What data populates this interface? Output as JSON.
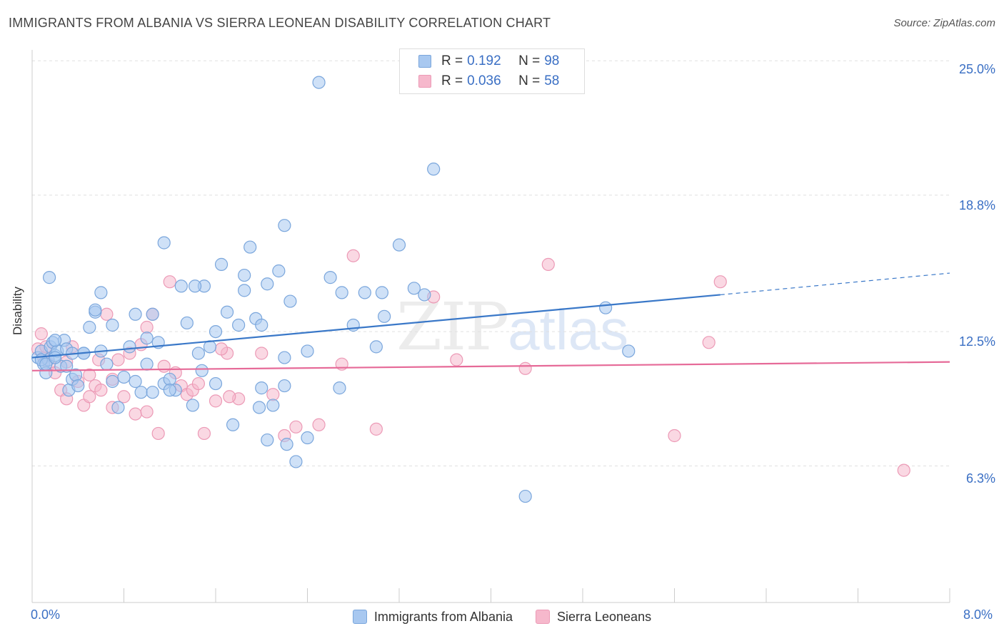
{
  "title": "IMMIGRANTS FROM ALBANIA VS SIERRA LEONEAN DISABILITY CORRELATION CHART",
  "source": "Source: ZipAtlas.com",
  "watermark": {
    "zip": "ZIP",
    "atlas": "atlas"
  },
  "legend_top": [
    {
      "r_label": "R =",
      "r_value": "0.192",
      "n_label": "N =",
      "n_value": "98"
    },
    {
      "r_label": "R =",
      "r_value": "0.036",
      "n_label": "N =",
      "n_value": "58"
    }
  ],
  "colors": {
    "blue_fill": "#a8c8f0",
    "blue_stroke": "#7aa6dc",
    "blue_line": "#3a78c8",
    "pink_fill": "#f6b8cc",
    "pink_stroke": "#ec9ab6",
    "pink_line": "#e66a98",
    "label_blue": "#3a6fc4"
  },
  "chart_data": {
    "type": "scatter",
    "title": "IMMIGRANTS FROM ALBANIA VS SIERRA LEONEAN DISABILITY CORRELATION CHART",
    "xlabel": "",
    "ylabel": "Disability",
    "xlim": [
      0,
      8
    ],
    "ylim": [
      0,
      25.5
    ],
    "x_tick_labels": [
      "0.0%",
      "8.0%"
    ],
    "y_ticks": [
      6.3,
      12.5,
      18.8,
      25.0
    ],
    "y_tick_labels": [
      "6.3%",
      "12.5%",
      "18.8%",
      "25.0%"
    ],
    "grid": "horizontal dashed",
    "legend_position": "bottom",
    "series": [
      {
        "name": "Immigrants from Albania",
        "color": "#a8c8f0",
        "points": [
          [
            0.05,
            11.3
          ],
          [
            0.08,
            11.6
          ],
          [
            0.1,
            11.0
          ],
          [
            0.12,
            10.6
          ],
          [
            0.14,
            11.2
          ],
          [
            0.16,
            11.8
          ],
          [
            0.18,
            12.0
          ],
          [
            0.2,
            11.4
          ],
          [
            0.22,
            11.6
          ],
          [
            0.25,
            10.9
          ],
          [
            0.28,
            12.1
          ],
          [
            0.3,
            11.7
          ],
          [
            0.32,
            9.8
          ],
          [
            0.35,
            10.3
          ],
          [
            0.38,
            10.5
          ],
          [
            0.4,
            10.0
          ],
          [
            0.45,
            11.5
          ],
          [
            0.5,
            12.7
          ],
          [
            0.55,
            13.4
          ],
          [
            0.6,
            11.6
          ],
          [
            0.65,
            11.0
          ],
          [
            0.7,
            10.2
          ],
          [
            0.75,
            9.0
          ],
          [
            0.8,
            10.4
          ],
          [
            0.85,
            11.8
          ],
          [
            0.9,
            10.2
          ],
          [
            0.95,
            9.7
          ],
          [
            1.0,
            11.0
          ],
          [
            1.05,
            13.3
          ],
          [
            1.1,
            12.0
          ],
          [
            1.15,
            10.1
          ],
          [
            1.2,
            10.3
          ],
          [
            1.25,
            9.8
          ],
          [
            1.3,
            14.6
          ],
          [
            1.35,
            12.9
          ],
          [
            1.4,
            9.1
          ],
          [
            1.45,
            11.5
          ],
          [
            1.5,
            14.6
          ],
          [
            1.55,
            11.8
          ],
          [
            1.6,
            12.5
          ],
          [
            1.65,
            15.6
          ],
          [
            1.7,
            13.4
          ],
          [
            1.75,
            8.2
          ],
          [
            1.8,
            12.8
          ],
          [
            1.85,
            14.4
          ],
          [
            1.9,
            16.4
          ],
          [
            1.95,
            13.1
          ],
          [
            2.0,
            9.9
          ],
          [
            2.05,
            14.7
          ],
          [
            2.1,
            9.1
          ],
          [
            2.15,
            15.3
          ],
          [
            2.2,
            11.3
          ],
          [
            2.3,
            6.5
          ],
          [
            2.4,
            11.6
          ],
          [
            2.5,
            24.0
          ],
          [
            2.6,
            15.0
          ],
          [
            2.7,
            14.3
          ],
          [
            2.8,
            12.8
          ],
          [
            2.9,
            14.3
          ],
          [
            3.0,
            11.8
          ],
          [
            3.2,
            16.5
          ],
          [
            3.5,
            20.0
          ],
          [
            4.3,
            4.9
          ],
          [
            5.0,
            13.6
          ],
          [
            5.2,
            11.6
          ],
          [
            0.6,
            14.3
          ],
          [
            0.7,
            12.8
          ],
          [
            0.15,
            15.0
          ],
          [
            0.9,
            13.3
          ],
          [
            1.15,
            16.6
          ],
          [
            2.2,
            17.4
          ],
          [
            1.2,
            9.8
          ],
          [
            0.45,
            11.5
          ],
          [
            0.35,
            11.5
          ],
          [
            0.3,
            10.9
          ],
          [
            1.0,
            12.2
          ],
          [
            1.05,
            9.7
          ],
          [
            1.48,
            10.7
          ],
          [
            1.6,
            10.1
          ],
          [
            1.85,
            15.1
          ],
          [
            2.25,
            13.9
          ],
          [
            2.2,
            10.0
          ],
          [
            2.4,
            7.6
          ],
          [
            2.68,
            9.9
          ],
          [
            3.07,
            13.2
          ],
          [
            3.05,
            14.3
          ],
          [
            3.33,
            14.5
          ],
          [
            3.42,
            14.2
          ],
          [
            1.98,
            9.0
          ],
          [
            2.05,
            7.5
          ],
          [
            2.22,
            7.3
          ],
          [
            0.08,
            11.2
          ],
          [
            0.12,
            11.0
          ],
          [
            0.2,
            11.3
          ],
          [
            1.42,
            14.6
          ],
          [
            2.0,
            12.8
          ],
          [
            0.2,
            12.1
          ],
          [
            0.55,
            13.5
          ]
        ]
      },
      {
        "name": "Sierra Leoneans",
        "color": "#f6b8cc",
        "points": [
          [
            0.05,
            11.7
          ],
          [
            0.08,
            12.4
          ],
          [
            0.1,
            11.3
          ],
          [
            0.15,
            11.0
          ],
          [
            0.2,
            10.6
          ],
          [
            0.25,
            9.8
          ],
          [
            0.3,
            9.4
          ],
          [
            0.35,
            11.8
          ],
          [
            0.4,
            10.2
          ],
          [
            0.45,
            9.1
          ],
          [
            0.5,
            9.5
          ],
          [
            0.55,
            10.0
          ],
          [
            0.6,
            9.8
          ],
          [
            0.65,
            13.3
          ],
          [
            0.7,
            10.3
          ],
          [
            0.75,
            11.2
          ],
          [
            0.8,
            9.5
          ],
          [
            0.85,
            11.5
          ],
          [
            0.9,
            8.7
          ],
          [
            0.95,
            11.9
          ],
          [
            1.0,
            12.7
          ],
          [
            1.05,
            13.3
          ],
          [
            1.1,
            7.8
          ],
          [
            1.15,
            10.9
          ],
          [
            1.2,
            14.8
          ],
          [
            1.25,
            10.6
          ],
          [
            1.3,
            10.0
          ],
          [
            1.35,
            9.6
          ],
          [
            1.4,
            9.8
          ],
          [
            1.5,
            7.8
          ],
          [
            1.6,
            9.3
          ],
          [
            1.7,
            11.5
          ],
          [
            1.8,
            9.4
          ],
          [
            2.0,
            11.5
          ],
          [
            2.1,
            9.6
          ],
          [
            2.2,
            7.7
          ],
          [
            2.5,
            8.2
          ],
          [
            2.7,
            11.0
          ],
          [
            2.8,
            16.0
          ],
          [
            3.0,
            8.0
          ],
          [
            3.5,
            14.1
          ],
          [
            3.7,
            11.2
          ],
          [
            4.3,
            10.8
          ],
          [
            4.5,
            15.6
          ],
          [
            5.6,
            7.7
          ],
          [
            5.9,
            12.0
          ],
          [
            6.0,
            14.8
          ],
          [
            7.6,
            6.1
          ],
          [
            0.12,
            11.8
          ],
          [
            0.3,
            11.1
          ],
          [
            0.5,
            10.5
          ],
          [
            0.7,
            9.0
          ],
          [
            1.0,
            8.8
          ],
          [
            1.45,
            10.1
          ],
          [
            1.65,
            11.7
          ],
          [
            2.3,
            8.1
          ],
          [
            0.58,
            11.2
          ],
          [
            1.72,
            9.5
          ]
        ]
      }
    ],
    "trend_lines": [
      {
        "series": "Immigrants from Albania",
        "x": [
          0,
          6.0
        ],
        "y": [
          11.3,
          14.2
        ],
        "dashed_extension": {
          "x": [
            6.0,
            8.0
          ],
          "y": [
            14.2,
            15.2
          ]
        }
      },
      {
        "series": "Sierra Leoneans",
        "x": [
          0,
          8.0
        ],
        "y": [
          10.7,
          11.1
        ]
      }
    ]
  },
  "legend_bottom": [
    {
      "label": "Immigrants from Albania"
    },
    {
      "label": "Sierra Leoneans"
    }
  ]
}
